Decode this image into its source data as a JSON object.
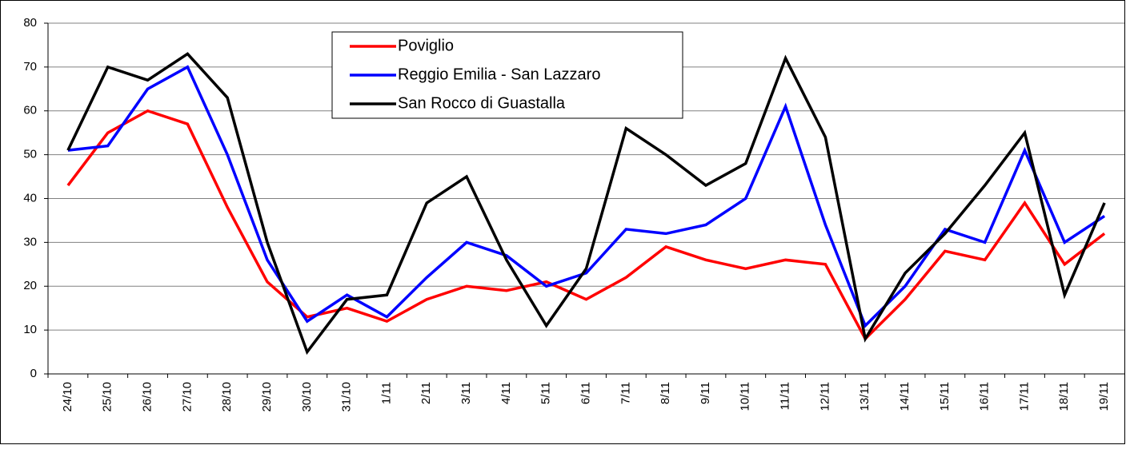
{
  "chart_data": {
    "type": "line",
    "categories": [
      "24/10",
      "25/10",
      "26/10",
      "27/10",
      "28/10",
      "29/10",
      "30/10",
      "31/10",
      "1/11",
      "2/11",
      "3/11",
      "4/11",
      "5/11",
      "6/11",
      "7/11",
      "8/11",
      "9/11",
      "10/11",
      "11/11",
      "12/11",
      "13/11",
      "14/11",
      "15/11",
      "16/11",
      "17/11",
      "18/11",
      "19/11"
    ],
    "series": [
      {
        "name": "Poviglio",
        "color": "#ff0000",
        "values": [
          43,
          55,
          60,
          57,
          38,
          21,
          13,
          15,
          12,
          17,
          20,
          19,
          21,
          17,
          22,
          29,
          26,
          24,
          26,
          25,
          8,
          17,
          28,
          26,
          39,
          25,
          32
        ]
      },
      {
        "name": "Reggio Emilia - San Lazzaro",
        "color": "#0000ff",
        "values": [
          51,
          52,
          65,
          70,
          50,
          26,
          12,
          18,
          13,
          22,
          30,
          27,
          20,
          23,
          33,
          32,
          34,
          40,
          61,
          34,
          11,
          20,
          33,
          30,
          51,
          30,
          36
        ]
      },
      {
        "name": "San Rocco di Guastalla",
        "color": "#000000",
        "values": [
          51,
          70,
          67,
          73,
          63,
          30,
          5,
          17,
          18,
          39,
          45,
          26,
          11,
          24,
          56,
          50,
          43,
          48,
          72,
          54,
          8,
          23,
          32,
          43,
          55,
          18,
          39
        ]
      }
    ],
    "ylim": [
      0,
      80
    ],
    "yticks": [
      0,
      10,
      20,
      30,
      40,
      50,
      60,
      70,
      80
    ],
    "grid": true,
    "legend": "top"
  }
}
